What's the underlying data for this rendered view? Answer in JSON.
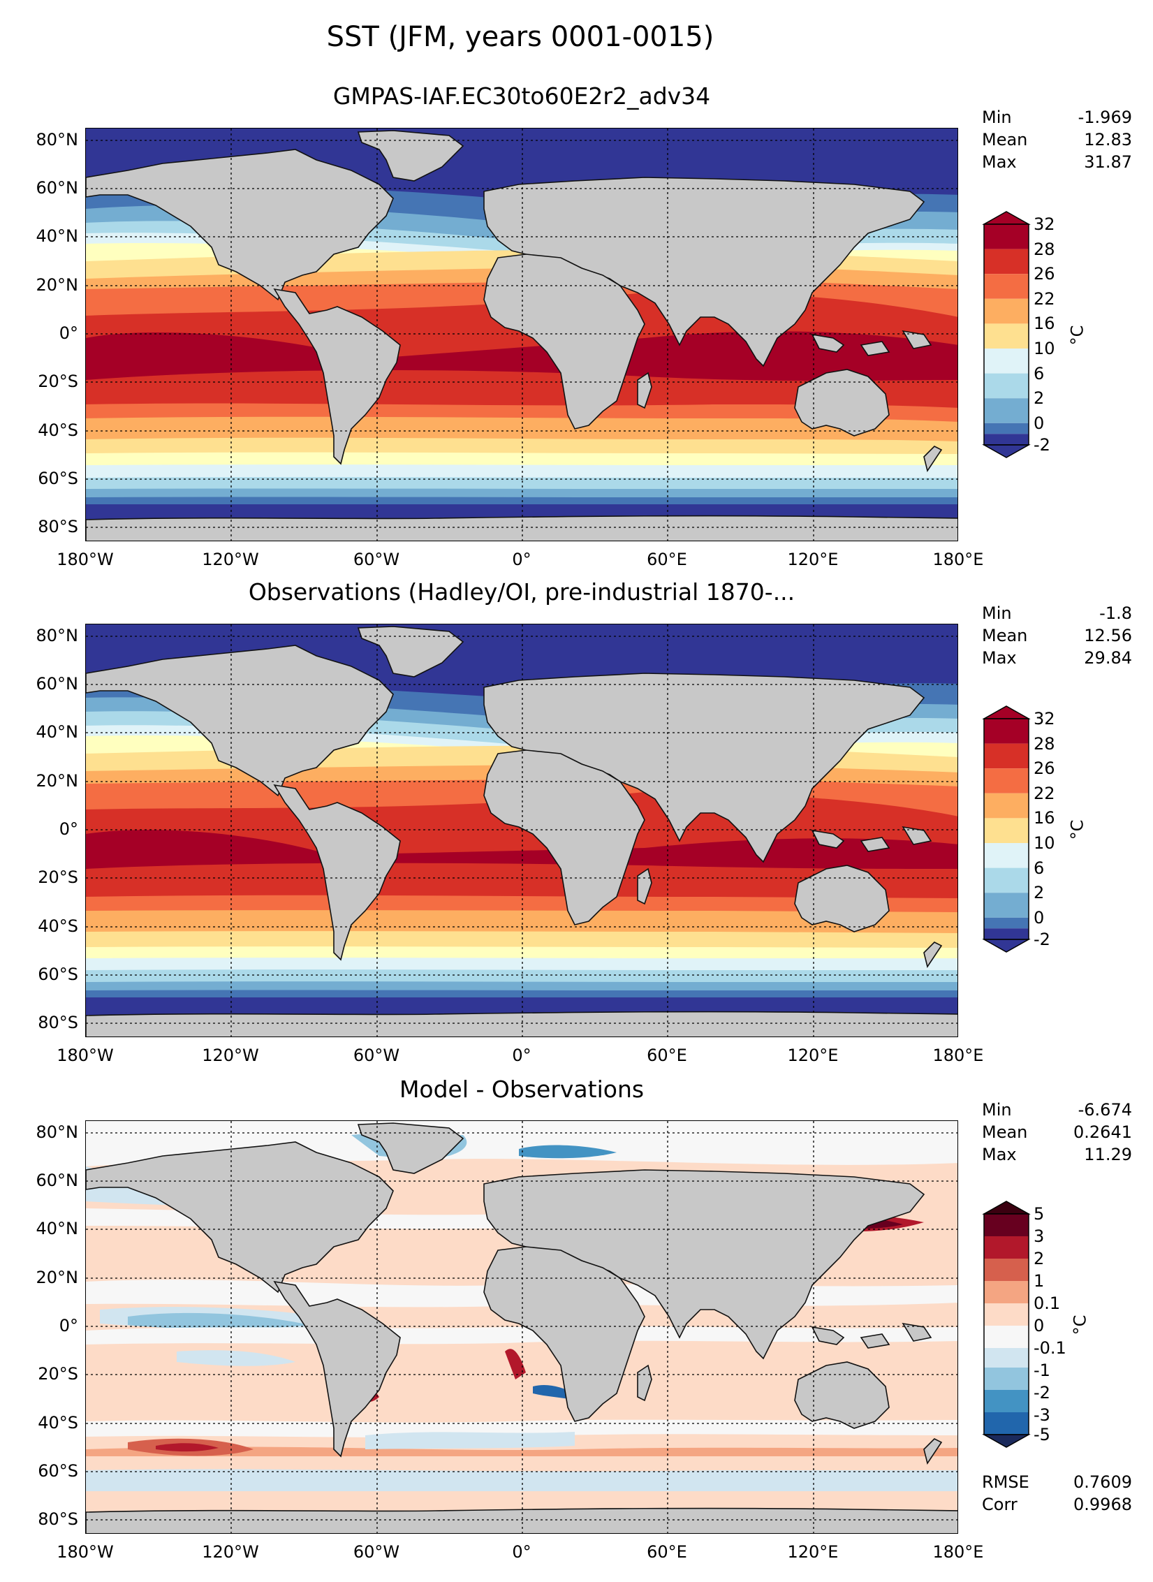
{
  "suptitle": "SST (JFM, years 0001-0015)",
  "x_tick_labels": [
    "180°W",
    "120°W",
    "60°W",
    "0°",
    "60°E",
    "120°E",
    "180°E"
  ],
  "y_tick_labels": [
    "80°N",
    "60°N",
    "40°N",
    "20°N",
    "0°",
    "20°S",
    "40°S",
    "60°S",
    "80°S"
  ],
  "panels": [
    {
      "title": "GMPAS-IAF.EC30to60E2r2_adv34",
      "stats": [
        {
          "label": "Min",
          "value": "-1.969"
        },
        {
          "label": "Mean",
          "value": "12.83"
        },
        {
          "label": "Max",
          "value": "31.87"
        }
      ],
      "colorbar": {
        "labels": [
          "32",
          "28",
          "26",
          "22",
          "16",
          "10",
          "6",
          "2",
          "0",
          "-2"
        ],
        "unit": "°C"
      }
    },
    {
      "title": "Observations (Hadley/OI, pre-industrial 1870-...",
      "stats": [
        {
          "label": "Min",
          "value": "-1.8"
        },
        {
          "label": "Mean",
          "value": "12.56"
        },
        {
          "label": "Max",
          "value": "29.84"
        }
      ],
      "colorbar": {
        "labels": [
          "32",
          "28",
          "26",
          "22",
          "16",
          "10",
          "6",
          "2",
          "0",
          "-2"
        ],
        "unit": "°C"
      }
    },
    {
      "title": "Model - Observations",
      "stats": [
        {
          "label": "Min",
          "value": "-6.674"
        },
        {
          "label": "Mean",
          "value": "0.2641"
        },
        {
          "label": "Max",
          "value": "11.29"
        }
      ],
      "colorbar": {
        "labels": [
          "5",
          "3",
          "2",
          "1",
          "0.1",
          "0",
          "-0.1",
          "-1",
          "-2",
          "-3",
          "-5"
        ],
        "unit": "°C"
      },
      "metrics": [
        {
          "label": "RMSE",
          "value": "0.7609"
        },
        {
          "label": "Corr",
          "value": "0.9968"
        }
      ]
    }
  ],
  "colors": {
    "sst_bands": [
      "#313695",
      "#4575b4",
      "#74add1",
      "#abd9e9",
      "#e0f3f8",
      "#ffffbf",
      "#fee090",
      "#fdae61",
      "#f46d43",
      "#d73027",
      "#a50026"
    ],
    "diff_bands": [
      "#1b2a5c",
      "#2166ac",
      "#4393c3",
      "#92c5de",
      "#d1e5f0",
      "#f7f7f7",
      "#fddbc7",
      "#f4a582",
      "#d6604d",
      "#b2182b",
      "#67001f"
    ],
    "land": "#c8c8c8"
  }
}
